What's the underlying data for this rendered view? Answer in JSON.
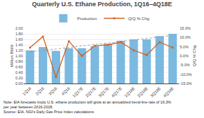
{
  "chart_data": {
    "type": "bar",
    "title": "Quarterly U.S. Ethane Production, 1Q16–4Q18E",
    "categories": [
      "1Q16",
      "2Q16",
      "3Q16",
      "4Q16",
      "1Q17E",
      "2Q17E",
      "3Q17E",
      "4Q17E",
      "1Q18E",
      "2Q18E",
      "3Q18E",
      "4Q18E"
    ],
    "series": [
      {
        "name": "Production",
        "type": "bar",
        "color": "#7ab9e0",
        "values": [
          1.2,
          1.32,
          1.18,
          1.28,
          1.28,
          1.35,
          1.44,
          1.55,
          1.6,
          1.6,
          1.72,
          1.8
        ]
      },
      {
        "name": "Q/Q % Chg",
        "type": "line",
        "axis": "y2",
        "color": "#d4601a",
        "marker": "circle",
        "values": [
          4.5,
          10.5,
          -11.5,
          8.0,
          0.0,
          5.5,
          6.0,
          7.5,
          3.0,
          0.5,
          7.5,
          4.5
        ]
      },
      {
        "type": "line",
        "line_style": "dotted",
        "color": "#a0a0a0",
        "values": [
          1.1426,
          1.1972,
          1.2519,
          1.3066,
          1.3613,
          1.416,
          1.4707,
          1.5254,
          1.58,
          1.6347,
          1.6894,
          1.7441
        ]
      }
    ],
    "ylabel": "Million Bbl/d",
    "y2label": "Q/Q % Chg",
    "ylim": [
      0.0,
      2.0
    ],
    "yticks": [
      {
        "value": 0.0,
        "label": "0.00"
      },
      {
        "value": 0.2,
        "label": "0.20"
      },
      {
        "value": 0.4,
        "label": "0.40"
      },
      {
        "value": 0.6,
        "label": "0.60"
      },
      {
        "value": 0.8,
        "label": "0.80"
      },
      {
        "value": 1.0,
        "label": "1.00"
      },
      {
        "value": 1.2,
        "label": "1.20"
      },
      {
        "value": 1.4,
        "label": "1.40"
      },
      {
        "value": 1.6,
        "label": "1.60"
      },
      {
        "value": 1.8,
        "label": "1.80"
      },
      {
        "value": 2.0,
        "label": "2.00"
      }
    ],
    "y2lim": [
      -15.0,
      15.0
    ],
    "y2ticks": [
      {
        "value": -15.0,
        "label": "-15.0%"
      },
      {
        "value": -10.0,
        "label": "-10.0%"
      },
      {
        "value": -5.0,
        "label": "-5.0%"
      },
      {
        "value": 0.0,
        "label": "0.0%"
      },
      {
        "value": 5.0,
        "label": "5.0%"
      },
      {
        "value": 10.0,
        "label": "10.0%"
      },
      {
        "value": 15.0,
        "label": "15.0%"
      }
    ],
    "grid": true,
    "legend": "top",
    "annotations": [
      "Note: EIA forecasts imply U.S. ethane production will grow at an annualized trend-line rate of 16.3%\nper year between 2016-2018.",
      "Source: EIA, NGI's Daily Gas Price Index calculations"
    ]
  }
}
